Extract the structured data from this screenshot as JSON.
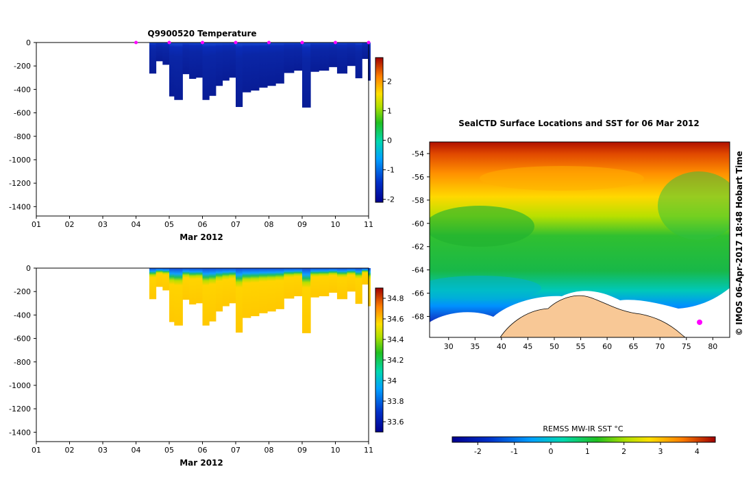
{
  "chart_data": [
    {
      "type": "heatmap",
      "name": "temperature-section",
      "title": "Q9900520  Temperature",
      "xlabel": "Mar 2012",
      "x_ticks": [
        "01",
        "02",
        "03",
        "04",
        "05",
        "06",
        "07",
        "08",
        "09",
        "10",
        "11"
      ],
      "y_ticks": [
        "0",
        "-200",
        "-400",
        "-600",
        "-800",
        "-1000",
        "-1200",
        "-1400"
      ],
      "xlim": [
        1,
        11
      ],
      "ylim": [
        -1480,
        0
      ],
      "colorbar": {
        "min": -2.1,
        "max": 2.8,
        "ticks": [
          "2",
          "1",
          "0",
          "-1",
          "-2"
        ],
        "tick_values": [
          2,
          1,
          0,
          -1,
          -2
        ]
      },
      "profile_markers_days": [
        4,
        5,
        6,
        7,
        8,
        9,
        10,
        11
      ],
      "profile_max_depths": [
        [
          4.4,
          -265
        ],
        [
          4.6,
          -160
        ],
        [
          4.8,
          -190
        ],
        [
          5.0,
          -460
        ],
        [
          5.15,
          -490
        ],
        [
          5.4,
          -270
        ],
        [
          5.6,
          -310
        ],
        [
          5.8,
          -300
        ],
        [
          6.0,
          -490
        ],
        [
          6.2,
          -455
        ],
        [
          6.4,
          -370
        ],
        [
          6.6,
          -325
        ],
        [
          6.8,
          -300
        ],
        [
          7.0,
          -550
        ],
        [
          7.2,
          -425
        ],
        [
          7.45,
          -410
        ],
        [
          7.7,
          -385
        ],
        [
          7.95,
          -370
        ],
        [
          8.2,
          -350
        ],
        [
          8.45,
          -260
        ],
        [
          8.75,
          -240
        ],
        [
          9.0,
          -555
        ],
        [
          9.25,
          -250
        ],
        [
          9.5,
          -240
        ],
        [
          9.8,
          -210
        ],
        [
          10.05,
          -265
        ],
        [
          10.35,
          -200
        ],
        [
          10.6,
          -305
        ],
        [
          10.8,
          -140
        ],
        [
          10.98,
          -325
        ]
      ]
    },
    {
      "type": "heatmap",
      "name": "salinity-section",
      "title": "",
      "xlabel": "Mar 2012",
      "x_ticks": [
        "01",
        "02",
        "03",
        "04",
        "05",
        "06",
        "07",
        "08",
        "09",
        "10",
        "11"
      ],
      "y_ticks": [
        "0",
        "-200",
        "-400",
        "-600",
        "-800",
        "-1000",
        "-1200",
        "-1400"
      ],
      "xlim": [
        1,
        11
      ],
      "ylim": [
        -1480,
        0
      ],
      "colorbar": {
        "min": 33.5,
        "max": 34.9,
        "ticks": [
          "34.8",
          "34.6",
          "34.4",
          "34.2",
          "34",
          "33.8",
          "33.6"
        ],
        "tick_values": [
          34.8,
          34.6,
          34.4,
          34.2,
          34.0,
          33.8,
          33.6
        ]
      }
    },
    {
      "type": "heatmap",
      "name": "sst-map",
      "title": "SealCTD Surface Locations and SST for 06 Mar 2012",
      "x_ticks": [
        "30",
        "35",
        "40",
        "45",
        "50",
        "55",
        "60",
        "65",
        "70",
        "75",
        "80"
      ],
      "y_ticks": [
        "-54",
        "-56",
        "-58",
        "-60",
        "-62",
        "-64",
        "-66",
        "-68"
      ],
      "xlim": [
        26.4,
        83.2
      ],
      "ylim": [
        -69.8,
        -53.0
      ],
      "colorbar": {
        "label": "REMSS MW-IR SST °C",
        "min": -2.7,
        "max": 4.5,
        "ticks": [
          "-2",
          "-1",
          "0",
          "1",
          "2",
          "3",
          "4"
        ],
        "tick_values": [
          -2,
          -1,
          0,
          1,
          2,
          3,
          4
        ]
      },
      "track_marker": {
        "lon": 77.5,
        "lat": -68.5
      }
    }
  ],
  "credit": "© IMOS 06-Apr-2017 18:48 Hobart Time",
  "colors": {
    "land": "#f8c896",
    "ice": "#ffffff",
    "marker": "#ff00ff"
  }
}
